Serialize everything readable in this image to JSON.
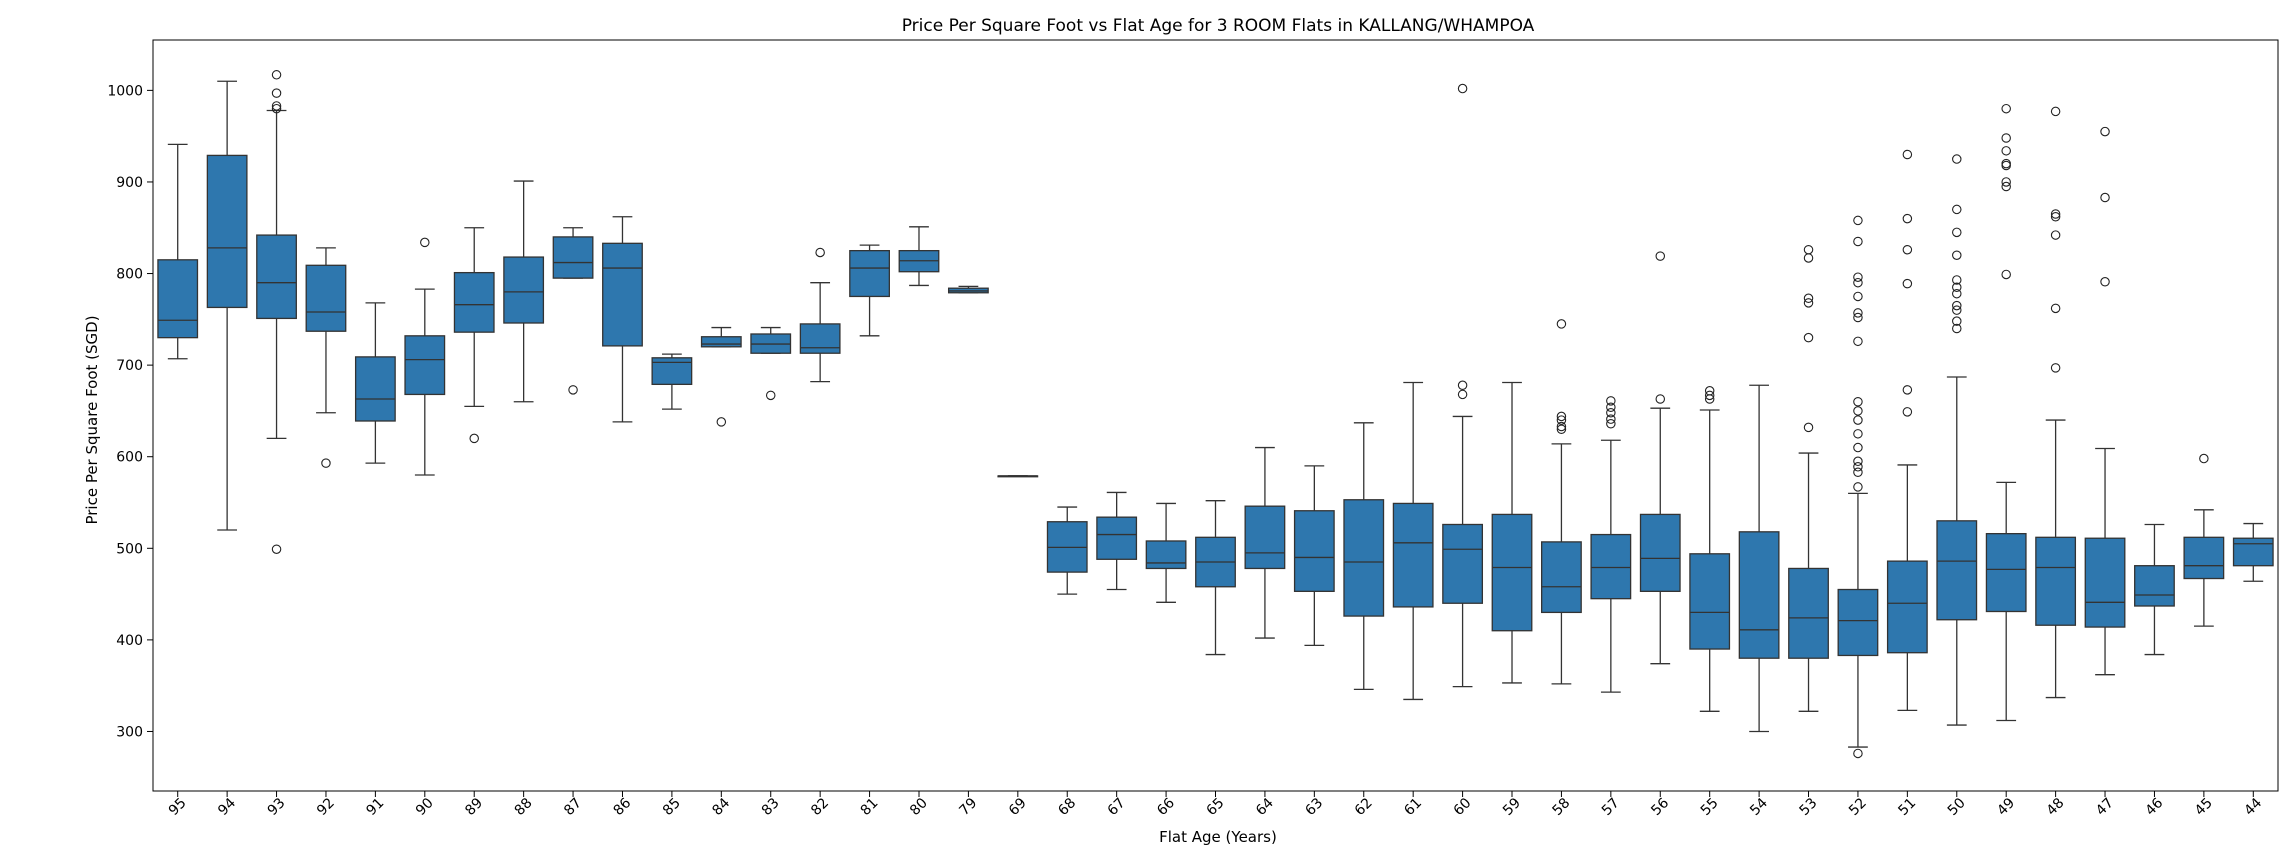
{
  "chart_data": {
    "type": "box",
    "title": "Price Per Square Foot vs Flat Age for 3 ROOM Flats in KALLANG/WHAMPOA",
    "xlabel": "Flat Age (Years)",
    "ylabel": "Price Per Square Foot (SGD)",
    "ylim": [
      235,
      1055
    ],
    "yticks": [
      300,
      400,
      500,
      600,
      700,
      800,
      900,
      1000
    ],
    "box_color": "#2e77ae",
    "line_color": "#333333",
    "categories": [
      "95",
      "94",
      "93",
      "92",
      "91",
      "90",
      "89",
      "88",
      "87",
      "86",
      "85",
      "84",
      "83",
      "82",
      "81",
      "80",
      "79",
      "69",
      "68",
      "67",
      "66",
      "65",
      "64",
      "63",
      "62",
      "61",
      "60",
      "59",
      "58",
      "57",
      "56",
      "55",
      "54",
      "53",
      "52",
      "51",
      "50",
      "49",
      "48",
      "47",
      "46",
      "45",
      "44"
    ],
    "boxes": [
      {
        "label": "95",
        "whislo": 707,
        "q1": 730,
        "med": 749,
        "q3": 815,
        "whishi": 941,
        "fliers": []
      },
      {
        "label": "94",
        "whislo": 520,
        "q1": 763,
        "med": 828,
        "q3": 929,
        "whishi": 1010,
        "fliers": []
      },
      {
        "label": "93",
        "whislo": 620,
        "q1": 751,
        "med": 790,
        "q3": 842,
        "whishi": 978,
        "fliers": [
          499,
          980,
          983,
          997,
          1017
        ]
      },
      {
        "label": "92",
        "whislo": 648,
        "q1": 737,
        "med": 758,
        "q3": 809,
        "whishi": 828,
        "fliers": [
          593
        ]
      },
      {
        "label": "91",
        "whislo": 593,
        "q1": 639,
        "med": 663,
        "q3": 709,
        "whishi": 768,
        "fliers": []
      },
      {
        "label": "90",
        "whislo": 580,
        "q1": 668,
        "med": 706,
        "q3": 732,
        "whishi": 783,
        "fliers": [
          834
        ]
      },
      {
        "label": "89",
        "whislo": 655,
        "q1": 736,
        "med": 766,
        "q3": 801,
        "whishi": 850,
        "fliers": [
          620
        ]
      },
      {
        "label": "88",
        "whislo": 660,
        "q1": 746,
        "med": 780,
        "q3": 818,
        "whishi": 901,
        "fliers": []
      },
      {
        "label": "87",
        "whislo": 795,
        "q1": 795,
        "med": 812,
        "q3": 840,
        "whishi": 850,
        "fliers": [
          673
        ]
      },
      {
        "label": "86",
        "whislo": 638,
        "q1": 721,
        "med": 806,
        "q3": 833,
        "whishi": 862,
        "fliers": []
      },
      {
        "label": "85",
        "whislo": 652,
        "q1": 679,
        "med": 703,
        "q3": 708,
        "whishi": 712,
        "fliers": []
      },
      {
        "label": "84",
        "whislo": 720,
        "q1": 720,
        "med": 723,
        "q3": 731,
        "whishi": 741,
        "fliers": [
          638
        ]
      },
      {
        "label": "83",
        "whislo": 713,
        "q1": 713,
        "med": 723,
        "q3": 734,
        "whishi": 741,
        "fliers": [
          667
        ]
      },
      {
        "label": "82",
        "whislo": 682,
        "q1": 713,
        "med": 719,
        "q3": 745,
        "whishi": 790,
        "fliers": [
          823
        ]
      },
      {
        "label": "81",
        "whislo": 732,
        "q1": 775,
        "med": 806,
        "q3": 825,
        "whishi": 831,
        "fliers": []
      },
      {
        "label": "80",
        "whislo": 787,
        "q1": 802,
        "med": 814,
        "q3": 825,
        "whishi": 851,
        "fliers": []
      },
      {
        "label": "79",
        "whislo": 779,
        "q1": 779,
        "med": 781,
        "q3": 784,
        "whishi": 786,
        "fliers": []
      },
      {
        "label": "69",
        "whislo": 579,
        "q1": 579,
        "med": 579,
        "q3": 579,
        "whishi": 579,
        "fliers": []
      },
      {
        "label": "68",
        "whislo": 450,
        "q1": 474,
        "med": 501,
        "q3": 529,
        "whishi": 545,
        "fliers": []
      },
      {
        "label": "67",
        "whislo": 455,
        "q1": 488,
        "med": 515,
        "q3": 534,
        "whishi": 561,
        "fliers": []
      },
      {
        "label": "66",
        "whislo": 441,
        "q1": 478,
        "med": 484,
        "q3": 508,
        "whishi": 549,
        "fliers": []
      },
      {
        "label": "65",
        "whislo": 384,
        "q1": 458,
        "med": 485,
        "q3": 512,
        "whishi": 552,
        "fliers": []
      },
      {
        "label": "64",
        "whislo": 402,
        "q1": 478,
        "med": 495,
        "q3": 546,
        "whishi": 610,
        "fliers": []
      },
      {
        "label": "63",
        "whislo": 394,
        "q1": 453,
        "med": 490,
        "q3": 541,
        "whishi": 590,
        "fliers": []
      },
      {
        "label": "62",
        "whislo": 346,
        "q1": 426,
        "med": 485,
        "q3": 553,
        "whishi": 637,
        "fliers": []
      },
      {
        "label": "61",
        "whislo": 335,
        "q1": 436,
        "med": 506,
        "q3": 549,
        "whishi": 681,
        "fliers": []
      },
      {
        "label": "60",
        "whislo": 349,
        "q1": 440,
        "med": 499,
        "q3": 526,
        "whishi": 644,
        "fliers": [
          668,
          678,
          1002
        ]
      },
      {
        "label": "59",
        "whislo": 353,
        "q1": 410,
        "med": 479,
        "q3": 537,
        "whishi": 681,
        "fliers": []
      },
      {
        "label": "58",
        "whislo": 352,
        "q1": 430,
        "med": 458,
        "q3": 507,
        "whishi": 614,
        "fliers": [
          630,
          633,
          640,
          644,
          745
        ]
      },
      {
        "label": "57",
        "whislo": 343,
        "q1": 445,
        "med": 479,
        "q3": 515,
        "whishi": 618,
        "fliers": [
          636,
          641,
          648,
          654,
          661
        ]
      },
      {
        "label": "56",
        "whislo": 374,
        "q1": 453,
        "med": 489,
        "q3": 537,
        "whishi": 653,
        "fliers": [
          663,
          819
        ]
      },
      {
        "label": "55",
        "whislo": 322,
        "q1": 390,
        "med": 430,
        "q3": 494,
        "whishi": 651,
        "fliers": [
          663,
          667,
          672
        ]
      },
      {
        "label": "54",
        "whislo": 300,
        "q1": 380,
        "med": 411,
        "q3": 518,
        "whishi": 678,
        "fliers": []
      },
      {
        "label": "53",
        "whislo": 322,
        "q1": 380,
        "med": 424,
        "q3": 478,
        "whishi": 604,
        "fliers": [
          632,
          730,
          768,
          773,
          817,
          826
        ]
      },
      {
        "label": "52",
        "whislo": 283,
        "q1": 383,
        "med": 421,
        "q3": 455,
        "whishi": 560,
        "fliers": [
          276,
          567,
          583,
          589,
          595,
          610,
          625,
          640,
          650,
          660,
          726,
          752,
          757,
          775,
          790,
          796,
          835,
          858
        ]
      },
      {
        "label": "51",
        "whislo": 323,
        "q1": 386,
        "med": 440,
        "q3": 486,
        "whishi": 591,
        "fliers": [
          649,
          673,
          789,
          826,
          860,
          930
        ]
      },
      {
        "label": "50",
        "whislo": 307,
        "q1": 422,
        "med": 486,
        "q3": 530,
        "whishi": 687,
        "fliers": [
          740,
          748,
          760,
          765,
          778,
          785,
          793,
          820,
          845,
          870,
          925
        ]
      },
      {
        "label": "49",
        "whislo": 312,
        "q1": 431,
        "med": 477,
        "q3": 516,
        "whishi": 572,
        "fliers": [
          799,
          895,
          900,
          918,
          920,
          934,
          948,
          980
        ]
      },
      {
        "label": "48",
        "whislo": 337,
        "q1": 416,
        "med": 479,
        "q3": 512,
        "whishi": 640,
        "fliers": [
          697,
          762,
          842,
          862,
          865,
          977
        ]
      },
      {
        "label": "47",
        "whislo": 362,
        "q1": 414,
        "med": 441,
        "q3": 511,
        "whishi": 609,
        "fliers": [
          791,
          883,
          955
        ]
      },
      {
        "label": "46",
        "whislo": 384,
        "q1": 437,
        "med": 449,
        "q3": 481,
        "whishi": 526,
        "fliers": []
      },
      {
        "label": "45",
        "whislo": 415,
        "q1": 467,
        "med": 481,
        "q3": 512,
        "whishi": 542,
        "fliers": [
          598
        ]
      },
      {
        "label": "44",
        "whislo": 464,
        "q1": 481,
        "med": 505,
        "q3": 511,
        "whishi": 527,
        "fliers": []
      }
    ]
  }
}
